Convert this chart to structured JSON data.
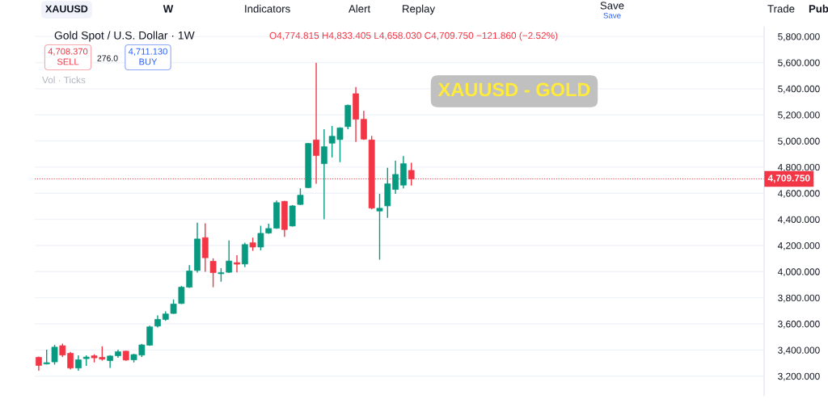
{
  "chart_data": {
    "type": "candlestick",
    "title": "Gold Spot / U.S. Dollar · 1W",
    "categories": [
      null,
      null,
      null,
      null,
      null,
      null,
      null,
      null,
      null,
      null,
      null,
      null,
      null,
      null,
      null,
      null,
      null,
      null,
      null,
      null,
      null,
      null,
      null,
      null,
      null,
      null,
      null,
      null,
      null,
      null,
      null,
      null,
      null,
      null,
      null,
      null,
      null,
      null,
      null,
      null,
      null,
      null,
      null,
      null,
      null,
      null,
      null,
      null,
      null,
      null,
      null,
      null,
      null,
      null,
      null,
      null,
      null,
      null,
      null,
      null,
      null,
      null,
      null,
      null,
      null,
      null,
      null,
      null,
      null,
      null,
      null,
      null,
      null,
      null,
      null,
      null,
      null,
      null,
      null,
      null,
      null,
      null,
      null,
      null,
      null,
      null,
      null,
      null,
      null,
      null,
      null,
      null
    ],
    "ohlc": [
      [
        3344,
        3350,
        3241,
        3282
      ],
      [
        3293,
        3402,
        3290,
        3303
      ],
      [
        3309,
        3439,
        3288,
        3422
      ],
      [
        3433,
        3449,
        3346,
        3361
      ],
      [
        3375,
        3385,
        3251,
        3262
      ],
      [
        3262,
        3359,
        3241,
        3325
      ],
      [
        3334,
        3359,
        3278,
        3346
      ],
      [
        3356,
        3367,
        3305,
        3340
      ],
      [
        3344,
        3428,
        3319,
        3330
      ],
      [
        3319,
        3361,
        3264,
        3354
      ],
      [
        3356,
        3402,
        3340,
        3387
      ],
      [
        3391,
        3395,
        3318,
        3323
      ],
      [
        3325,
        3371,
        3305,
        3365
      ],
      [
        3361,
        3447,
        3346,
        3439
      ],
      [
        3437,
        3587,
        3432,
        3577
      ],
      [
        3583,
        3665,
        3572,
        3634
      ],
      [
        3634,
        3696,
        3624,
        3676
      ],
      [
        3680,
        3787,
        3676,
        3752
      ],
      [
        3756,
        3890,
        3752,
        3881
      ],
      [
        3881,
        4050,
        3876,
        4005
      ],
      [
        4009,
        4375,
        3992,
        4250
      ],
      [
        4260,
        4370,
        3999,
        4106
      ],
      [
        4079,
        4102,
        3881,
        3992
      ],
      [
        3984,
        4026,
        3923,
        3992
      ],
      [
        3995,
        4239,
        3990,
        4081
      ],
      [
        4069,
        4126,
        3995,
        4057
      ],
      [
        4058,
        4221,
        4034,
        4207
      ],
      [
        4221,
        4260,
        4159,
        4188
      ],
      [
        4188,
        4351,
        4163,
        4293
      ],
      [
        4295,
        4367,
        4290,
        4330
      ],
      [
        4332,
        4544,
        4328,
        4528
      ],
      [
        4538,
        4542,
        4267,
        4322
      ],
      [
        4349,
        4509,
        4345,
        4503
      ],
      [
        4514,
        4637,
        4510,
        4585
      ],
      [
        4643,
        4985,
        4638,
        4981
      ],
      [
        5008,
        5598,
        4672,
        4888
      ],
      [
        4826,
        5090,
        4400,
        4956
      ],
      [
        4983,
        5115,
        4874,
        5036
      ],
      [
        5011,
        5105,
        4838,
        5100
      ],
      [
        5110,
        5279,
        5090,
        5273
      ],
      [
        5362,
        5413,
        4993,
        5166
      ],
      [
        5166,
        5230,
        5008,
        5014
      ],
      [
        5008,
        5039,
        4477,
        4486
      ],
      [
        4464,
        4596,
        4091,
        4485
      ],
      [
        4503,
        4795,
        4411,
        4672
      ],
      [
        4629,
        4849,
        4596,
        4744
      ],
      [
        4662,
        4884,
        4637,
        4826
      ],
      [
        4774.815,
        4833.405,
        4658.03,
        4709.75
      ],
      null,
      null,
      null,
      null,
      null,
      null,
      null,
      null,
      null,
      null,
      null,
      null,
      null,
      null,
      null,
      null,
      null,
      null,
      null,
      null,
      null,
      null,
      null,
      null,
      null,
      null,
      null,
      null,
      null,
      null,
      null,
      null,
      null,
      null,
      null,
      null,
      null,
      null,
      null,
      null,
      null,
      null,
      null,
      null
    ],
    "colors": [
      "#f23645",
      "#089981",
      "#089981",
      "#f23645",
      "#f23645",
      "#089981",
      "#089981",
      "#f23645",
      "#f23645",
      "#089981",
      "#089981",
      "#f23645",
      "#089981",
      "#089981",
      "#089981",
      "#089981",
      "#089981",
      "#089981",
      "#089981",
      "#089981",
      "#089981",
      "#f23645",
      "#f23645",
      "#089981",
      "#089981",
      "#f23645",
      "#089981",
      "#f23645",
      "#089981",
      "#089981",
      "#089981",
      "#f23645",
      "#089981",
      "#089981",
      "#089981",
      "#f23645",
      "#089981",
      "#089981",
      "#089981",
      "#089981",
      "#f23645",
      "#f23645",
      "#f23645",
      "#089981",
      "#089981",
      "#089981",
      "#089981",
      "#f23645",
      null,
      null,
      null,
      null,
      null,
      null,
      null,
      null,
      null,
      null,
      null,
      null,
      null,
      null,
      null,
      null,
      null,
      null,
      null,
      null,
      null,
      null,
      null,
      null,
      null,
      null,
      null,
      null,
      null,
      null,
      null,
      null,
      null,
      null,
      null,
      null,
      null,
      null,
      null,
      null,
      null,
      null,
      null,
      null
    ],
    "ylim": [
      3050,
      5875
    ],
    "yticks": [
      {
        "value": 3200,
        "label": "3,200.000"
      },
      {
        "value": 3400,
        "label": "3,400.000"
      },
      {
        "value": 3600,
        "label": "3,600.000"
      },
      {
        "value": 3800,
        "label": "3,800.000"
      },
      {
        "value": 4000,
        "label": "4,000.000"
      },
      {
        "value": 4200,
        "label": "4,200.000"
      },
      {
        "value": 4400,
        "label": "4,400.000"
      },
      {
        "value": 4600,
        "label": "4,600.000"
      },
      {
        "value": 4800,
        "label": "4,800.000"
      },
      {
        "value": 5000,
        "label": "5,000.000"
      },
      {
        "value": 5200,
        "label": "5,200.000"
      },
      {
        "value": 5400,
        "label": "5,400.000"
      },
      {
        "value": 5600,
        "label": "5,600.000"
      },
      {
        "value": 5800,
        "label": "5,800.000"
      }
    ],
    "ref_lines": [
      {
        "axis": "y",
        "value": 4709.75,
        "label": "4,709.750",
        "color": "#f23645",
        "line_style": "dotted"
      }
    ],
    "grid": "y",
    "tick_labels": "y",
    "annotations": [
      "O4,774.815 H4,833.405 L4,658.030 C4,709.750 −121.860 (−2.52%)",
      "4,708.370\nSELL",
      "276.0",
      "4,711.130\nBUY",
      "Vol · Ticks",
      "XAUUSD - GOLD",
      "XAUUSD",
      "W",
      "Indicators",
      "Alert",
      "Replay",
      "Save",
      "Save",
      "Trade",
      "Pub"
    ]
  }
}
